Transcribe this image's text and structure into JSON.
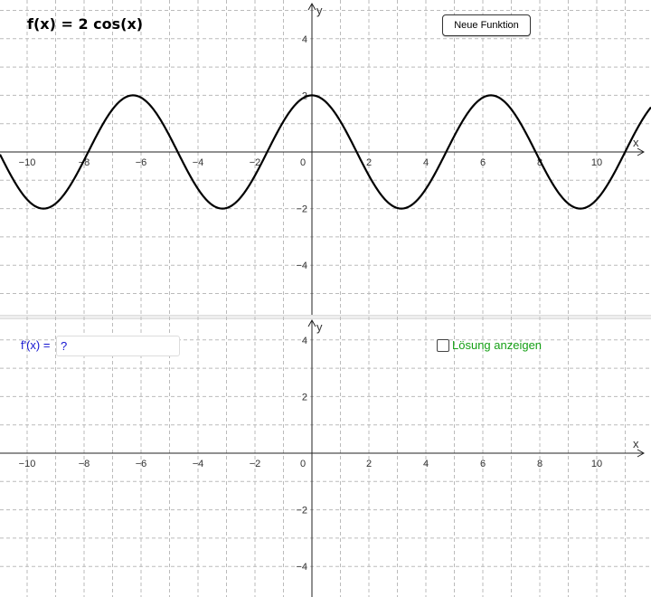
{
  "top_panel": {
    "function_label": "f(x) = 2  cos(x)",
    "new_function_button": "Neue Funktion",
    "x_axis_label": "x",
    "y_axis_label": "y",
    "x_tick_labels": [
      "−10",
      "−8",
      "−6",
      "−4",
      "−2",
      "0",
      "2",
      "4",
      "6",
      "8",
      "10"
    ],
    "y_tick_labels": [
      "4",
      "2",
      "−2",
      "−4"
    ]
  },
  "bottom_panel": {
    "derivative_label": "f'(x) =",
    "derivative_input_value": "?",
    "show_solution_label": "Lösung anzeigen",
    "x_axis_label": "x",
    "y_axis_label": "y",
    "x_tick_labels": [
      "−10",
      "−8",
      "−6",
      "−4",
      "−2",
      "0",
      "2",
      "4",
      "6",
      "8",
      "10"
    ],
    "y_tick_labels": [
      "4",
      "2",
      "−2",
      "−4"
    ]
  },
  "chart_data": {
    "type": "line",
    "series": [
      {
        "function": "2*cos(x)",
        "color": "#000000"
      }
    ],
    "xlim": [
      -11,
      11.8
    ],
    "ylim": [
      -5.5,
      5.3
    ],
    "grid": true
  },
  "colors": {
    "derivative_text": "#1515d0",
    "solution_text": "#16a016",
    "grid_line": "#bbbbbb"
  }
}
